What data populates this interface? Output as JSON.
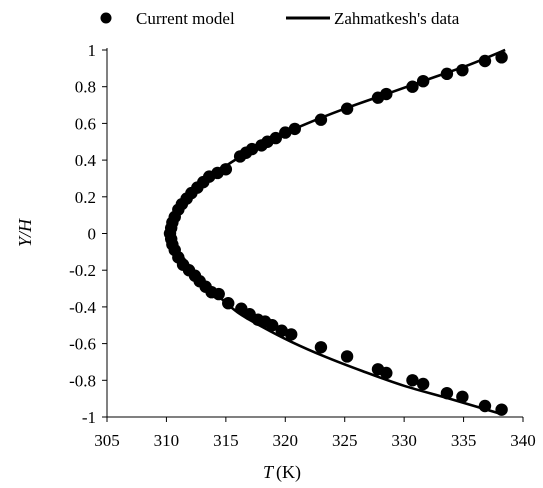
{
  "chart_data": {
    "type": "scatter",
    "xlabel_symbol": "T",
    "xlabel_unit": "(K)",
    "ylabel": "Y/H",
    "xlim": [
      305,
      340
    ],
    "ylim": [
      -1,
      1
    ],
    "x_ticks": [
      "305",
      "310",
      "315",
      "320",
      "325",
      "330",
      "335",
      "340"
    ],
    "y_ticks": [
      "1",
      "0.8",
      "0.6",
      "0.4",
      "0.2",
      "0",
      "-0.2",
      "-0.4",
      "-0.6",
      "-0.8",
      "-1"
    ],
    "grid": false,
    "legend_position": "top",
    "series": [
      {
        "name": "Current model",
        "style": "markers",
        "color": "#000000",
        "points": [
          [
            310.3,
            0.0
          ],
          [
            310.4,
            0.03
          ],
          [
            310.4,
            -0.03
          ],
          [
            310.5,
            0.06
          ],
          [
            310.5,
            -0.06
          ],
          [
            310.7,
            0.09
          ],
          [
            310.7,
            -0.09
          ],
          [
            311.0,
            0.13
          ],
          [
            311.0,
            -0.13
          ],
          [
            311.3,
            0.16
          ],
          [
            311.4,
            -0.17
          ],
          [
            311.7,
            0.19
          ],
          [
            311.9,
            -0.2
          ],
          [
            312.1,
            0.22
          ],
          [
            312.4,
            -0.23
          ],
          [
            312.6,
            0.25
          ],
          [
            312.8,
            -0.26
          ],
          [
            313.1,
            0.28
          ],
          [
            313.3,
            -0.29
          ],
          [
            313.6,
            0.31
          ],
          [
            313.8,
            -0.32
          ],
          [
            314.3,
            0.33
          ],
          [
            314.4,
            -0.33
          ],
          [
            315.0,
            0.35
          ],
          [
            315.2,
            -0.38
          ],
          [
            316.2,
            0.42
          ],
          [
            316.3,
            -0.41
          ],
          [
            316.7,
            0.44
          ],
          [
            317.0,
            -0.44
          ],
          [
            317.2,
            0.46
          ],
          [
            317.7,
            -0.47
          ],
          [
            318.0,
            0.48
          ],
          [
            318.3,
            -0.48
          ],
          [
            318.5,
            0.5
          ],
          [
            318.9,
            -0.5
          ],
          [
            319.2,
            0.52
          ],
          [
            319.7,
            -0.53
          ],
          [
            320.0,
            0.55
          ],
          [
            320.5,
            -0.55
          ],
          [
            320.8,
            0.57
          ],
          [
            323.0,
            0.62
          ],
          [
            323.0,
            -0.62
          ],
          [
            325.2,
            0.68
          ],
          [
            325.2,
            -0.67
          ],
          [
            327.8,
            0.74
          ],
          [
            327.8,
            -0.74
          ],
          [
            328.5,
            0.76
          ],
          [
            328.5,
            -0.76
          ],
          [
            330.7,
            0.8
          ],
          [
            330.7,
            -0.8
          ],
          [
            331.6,
            0.83
          ],
          [
            331.6,
            -0.82
          ],
          [
            333.6,
            0.87
          ],
          [
            333.6,
            -0.87
          ],
          [
            334.9,
            0.89
          ],
          [
            334.9,
            -0.89
          ],
          [
            336.8,
            0.94
          ],
          [
            336.8,
            -0.94
          ],
          [
            338.2,
            0.96
          ],
          [
            338.2,
            -0.96
          ]
        ]
      },
      {
        "name": "Zahmatkesh's data",
        "style": "line",
        "color": "#000000",
        "points": [
          [
            338.5,
            1.0
          ],
          [
            335.5,
            0.92
          ],
          [
            332.0,
            0.84
          ],
          [
            328.5,
            0.76
          ],
          [
            325.0,
            0.68
          ],
          [
            321.5,
            0.59
          ],
          [
            318.5,
            0.5
          ],
          [
            316.0,
            0.41
          ],
          [
            314.0,
            0.32
          ],
          [
            312.4,
            0.22
          ],
          [
            311.2,
            0.12
          ],
          [
            310.6,
            0.05
          ],
          [
            310.3,
            0.0
          ],
          [
            310.6,
            -0.05
          ],
          [
            311.4,
            -0.13
          ],
          [
            312.6,
            -0.23
          ],
          [
            314.2,
            -0.33
          ],
          [
            316.0,
            -0.43
          ],
          [
            318.1,
            -0.51
          ],
          [
            320.5,
            -0.59
          ],
          [
            323.3,
            -0.67
          ],
          [
            326.5,
            -0.75
          ],
          [
            330.0,
            -0.83
          ],
          [
            333.8,
            -0.9
          ],
          [
            338.0,
            -0.98
          ]
        ]
      }
    ]
  }
}
